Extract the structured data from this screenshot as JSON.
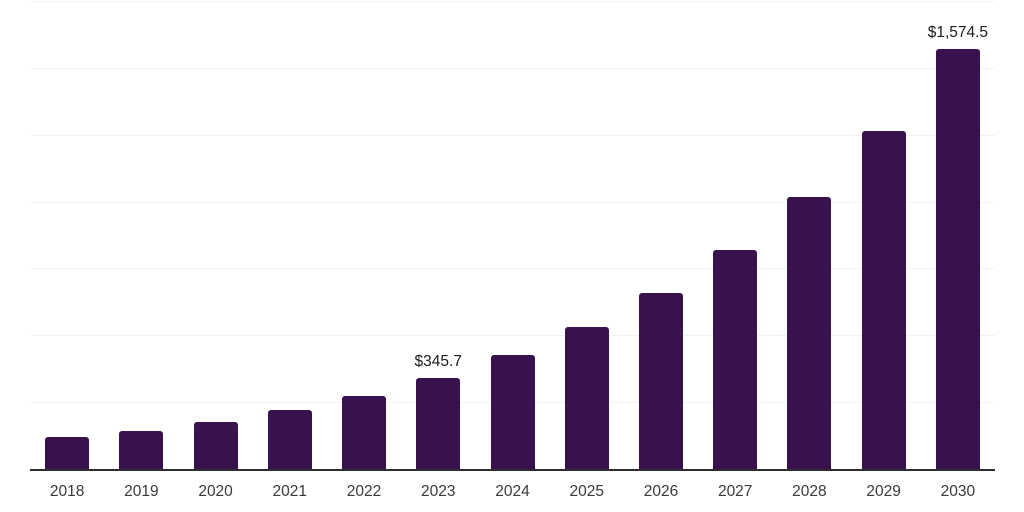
{
  "chart_data": {
    "type": "bar",
    "title": "",
    "xlabel": "",
    "ylabel": "",
    "categories": [
      "2018",
      "2019",
      "2020",
      "2021",
      "2022",
      "2023",
      "2024",
      "2025",
      "2026",
      "2027",
      "2028",
      "2029",
      "2030"
    ],
    "values": [
      125.0,
      145.4,
      181.2,
      222.6,
      278.6,
      345.7,
      429.4,
      533.3,
      662.3,
      822.5,
      1021.5,
      1268.6,
      1574.5
    ],
    "bar_labels": [
      "",
      "",
      "",
      "",
      "",
      "$345.7",
      "",
      "",
      "",
      "",
      "",
      "",
      "$1,574.5"
    ],
    "ylim": [
      0,
      1750
    ],
    "gridline_step": 250,
    "grid": true,
    "y_tick_labels_visible": false,
    "legend_position": "none",
    "colors": {
      "bar": "#37124E",
      "gridline": "#f2f2f2",
      "axis_line": "#2e2e2e",
      "data_label_text": "#1c1c1c",
      "tick_text": "#3a3a3a",
      "background": "#ffffff"
    }
  }
}
